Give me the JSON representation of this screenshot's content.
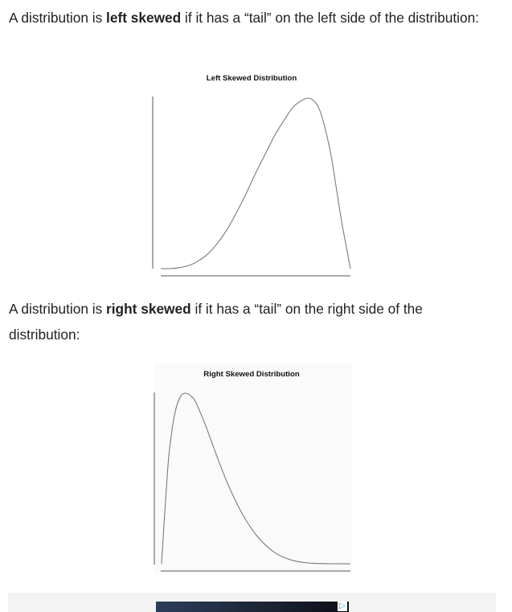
{
  "paragraph_left": {
    "prefix": "A distribution is ",
    "emphasis": "left skewed",
    "suffix": " if it has a “tail” on the left side of the distribution:"
  },
  "paragraph_right": {
    "prefix": "A distribution is ",
    "emphasis": "right skewed",
    "suffix": " if it has a “tail” on the right side of the distribution:"
  },
  "chart_data": [
    {
      "type": "line",
      "title": "Left Skewed Distribution",
      "xlabel": "",
      "ylabel": "",
      "xlim": [
        0,
        1
      ],
      "ylim": [
        0,
        1.05
      ],
      "grid": false,
      "series": [
        {
          "x": [
            0.0,
            0.05,
            0.1,
            0.15,
            0.2,
            0.25,
            0.3,
            0.35,
            0.4,
            0.45,
            0.5,
            0.55,
            0.6,
            0.65,
            0.7,
            0.75,
            0.78,
            0.8,
            0.83,
            0.86,
            0.9,
            0.95,
            1.0
          ],
          "y": [
            0.0,
            0.0,
            0.006,
            0.019,
            0.046,
            0.088,
            0.15,
            0.23,
            0.33,
            0.44,
            0.56,
            0.67,
            0.78,
            0.87,
            0.95,
            0.99,
            1.0,
            0.99,
            0.95,
            0.85,
            0.65,
            0.3,
            0.0
          ]
        }
      ]
    },
    {
      "type": "line",
      "title": "Right Skewed Distribution",
      "xlabel": "",
      "ylabel": "",
      "xlim": [
        0,
        1
      ],
      "ylim": [
        0,
        1.05
      ],
      "grid": false,
      "series": [
        {
          "x": [
            0.0,
            0.02,
            0.04,
            0.07,
            0.1,
            0.13,
            0.16,
            0.18,
            0.2,
            0.23,
            0.26,
            0.3,
            0.35,
            0.4,
            0.45,
            0.5,
            0.55,
            0.6,
            0.65,
            0.7,
            0.75,
            0.8,
            0.9,
            1.0
          ],
          "y": [
            0.0,
            0.35,
            0.65,
            0.88,
            0.98,
            1.0,
            0.98,
            0.95,
            0.9,
            0.82,
            0.73,
            0.61,
            0.47,
            0.35,
            0.25,
            0.17,
            0.11,
            0.065,
            0.036,
            0.018,
            0.008,
            0.003,
            0.0,
            0.0
          ]
        }
      ]
    }
  ],
  "colors": {
    "text": "#222222",
    "curve": "#7a7a7a",
    "axis": "#555555",
    "ad_background": "#f3f3f3",
    "ad_choice": "#2aa9e0"
  },
  "ad": {
    "choices_icon": "adchoices-icon",
    "choices_glyph": "▷"
  }
}
